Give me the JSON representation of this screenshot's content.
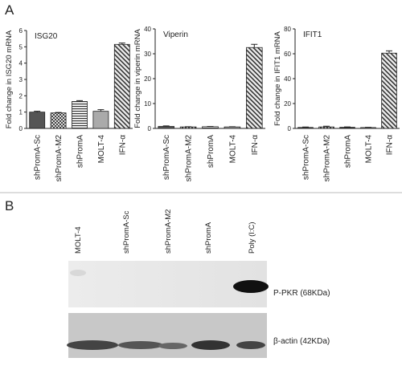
{
  "panels": {
    "a": "A",
    "b": "B"
  },
  "chart_data": [
    {
      "type": "bar",
      "title": "ISG20",
      "y_label": "Fold change in ISG20 mRNA",
      "categories": [
        "shPromA-Sc",
        "shPromA-M2",
        "shPromA",
        "MOLT-4",
        "IFN-α"
      ],
      "values": [
        1.0,
        0.95,
        1.65,
        1.05,
        5.15
      ],
      "errors": [
        0.05,
        0.03,
        0.05,
        0.1,
        0.08
      ],
      "ylim": [
        0,
        6
      ],
      "yticks": [
        0,
        1,
        2,
        3,
        4,
        5,
        6
      ],
      "patterns": [
        "solid",
        "checker",
        "hstripe",
        "light",
        "diagonal"
      ],
      "color": "#555555"
    },
    {
      "type": "bar",
      "title": "Viperin",
      "y_label": "Fold change in viperin mRNA",
      "categories": [
        "shPromA-Sc",
        "shPromA-M2",
        "shPromA",
        "MOLT-4",
        "IFN-α"
      ],
      "values": [
        0.8,
        0.6,
        0.7,
        0.6,
        32.5
      ],
      "errors": [
        0.2,
        0.1,
        0.1,
        0.1,
        1.3
      ],
      "ylim": [
        0,
        40
      ],
      "yticks": [
        0,
        10,
        20,
        30,
        40
      ],
      "patterns": [
        "solid",
        "checker",
        "hstripe",
        "light",
        "diagonal"
      ],
      "color": "#555555"
    },
    {
      "type": "bar",
      "title": "IFIT1",
      "y_label": "Fold change in IFIT1 mRNA",
      "categories": [
        "shPromA-Sc",
        "shPromA-M2",
        "shPromA",
        "MOLT-4",
        "IFN-α"
      ],
      "values": [
        0.8,
        1.2,
        0.9,
        0.7,
        60.5
      ],
      "errors": [
        0.3,
        0.6,
        0.3,
        0.2,
        1.8
      ],
      "ylim": [
        0,
        80
      ],
      "yticks": [
        0,
        20,
        40,
        60,
        80
      ],
      "patterns": [
        "solid",
        "checker",
        "hstripe",
        "light",
        "diagonal"
      ],
      "color": "#555555"
    }
  ],
  "blot": {
    "lanes": [
      "MOLT-4",
      "shPromA-Sc",
      "shPromA-M2",
      "shPromA",
      "Poly (I:C)"
    ],
    "bands": [
      "P-PKR (68KDa)",
      "β-actin (42KDa)"
    ]
  }
}
